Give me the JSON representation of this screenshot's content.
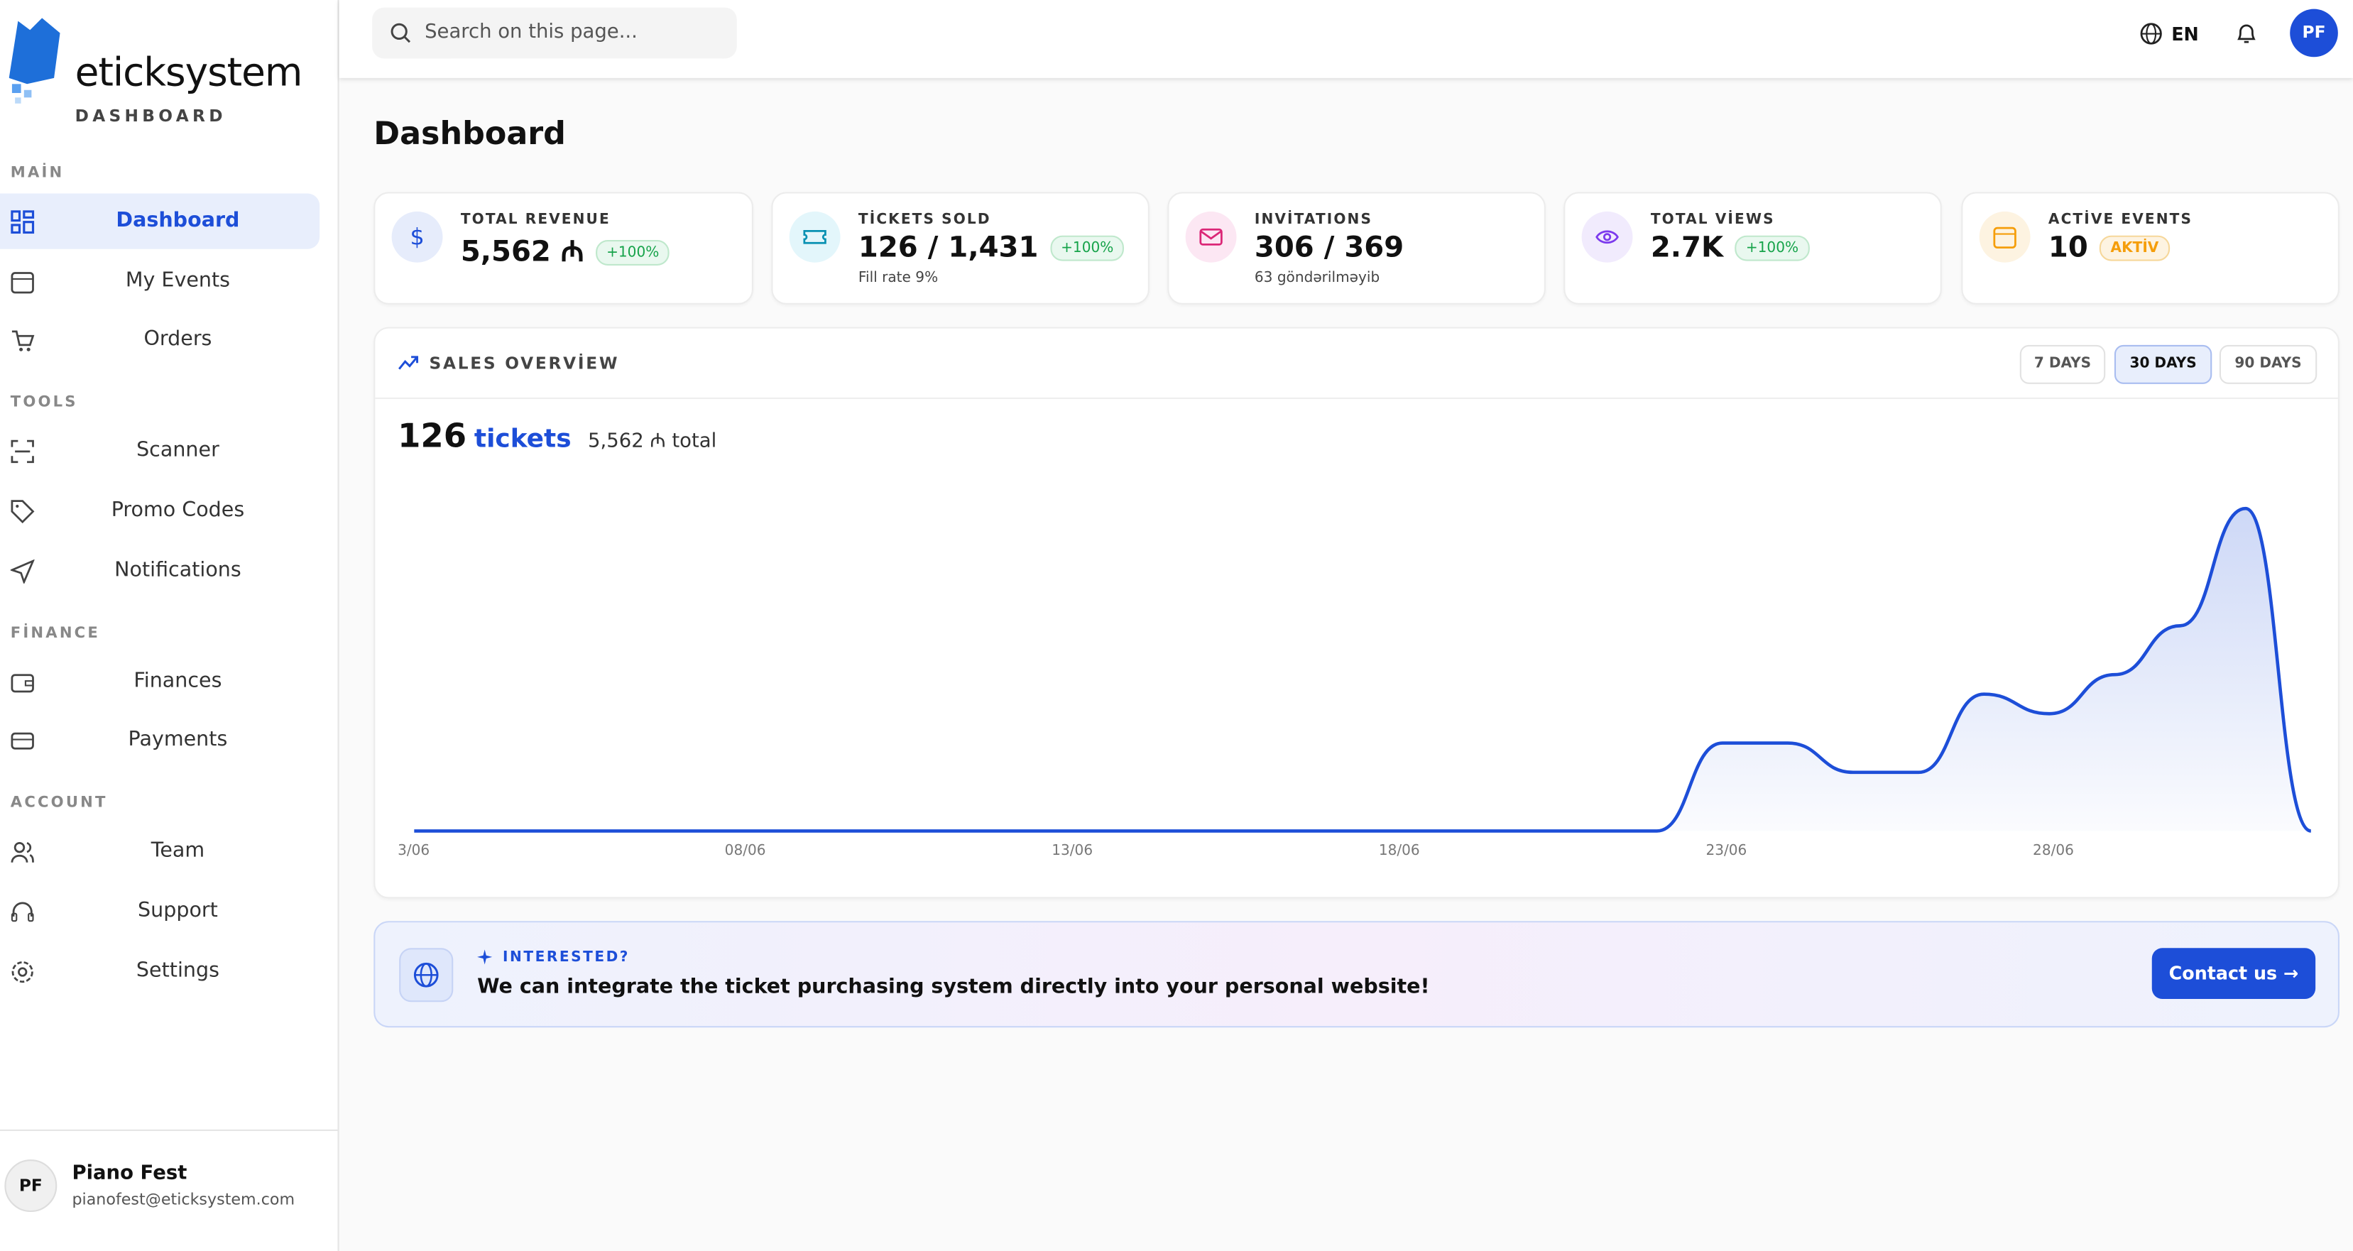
{
  "brand": {
    "name": "eticksystem",
    "subtitle": "DASHBOARD"
  },
  "sidebar": {
    "sections": [
      {
        "title": "MAİN",
        "items": [
          "Dashboard",
          "My Events",
          "Orders"
        ]
      },
      {
        "title": "TOOLS",
        "items": [
          "Scanner",
          "Promo Codes",
          "Notifications"
        ]
      },
      {
        "title": "FİNANCE",
        "items": [
          "Finances",
          "Payments"
        ]
      },
      {
        "title": "ACCOUNT",
        "items": [
          "Team",
          "Support",
          "Settings"
        ]
      }
    ]
  },
  "user": {
    "initials": "PF",
    "name": "Piano Fest",
    "email": "pianofest@eticksystem.com"
  },
  "header": {
    "search_placeholder": "Search on this page...",
    "language": "EN",
    "avatar": "PF"
  },
  "page_title": "Dashboard",
  "stats": [
    {
      "label": "TOTAL REVENUE",
      "value": "5,562 ₼",
      "badge": "+100%"
    },
    {
      "label": "TİCKETS SOLD",
      "value": "126 / 1,431",
      "badge": "+100%",
      "note": "Fill rate 9%"
    },
    {
      "label": "INVİTATIONS",
      "value": "306 / 369",
      "note": "63 göndərilməyib"
    },
    {
      "label": "TOTAL VİEWS",
      "value": "2.7K",
      "badge": "+100%"
    },
    {
      "label": "ACTİVE EVENTS",
      "value": "10",
      "badge": "AKTİV"
    }
  ],
  "sales": {
    "title": "SALES OVERVİEW",
    "ranges": [
      "7 DAYS",
      "30 DAYS",
      "90 DAYS"
    ],
    "tickets": "126",
    "tickets_label": "tickets",
    "total": "5,562 ₼ total"
  },
  "banner": {
    "kicker": "INTERESTED?",
    "text": "We can integrate the ticket purchasing system directly into your personal website!",
    "button": "Contact us"
  },
  "chart_data": {
    "type": "area",
    "color": "#1d4ed8",
    "categories": [
      "3/06",
      null,
      null,
      null,
      null,
      "08/06",
      null,
      null,
      null,
      null,
      "13/06",
      null,
      null,
      null,
      null,
      "18/06",
      null,
      null,
      null,
      null,
      "23/06",
      null,
      null,
      null,
      null,
      "28/06",
      null,
      null,
      null,
      null
    ],
    "values": [
      0,
      0,
      0,
      0,
      0,
      0,
      0,
      0,
      0,
      0,
      0,
      0,
      0,
      0,
      0,
      0,
      0,
      0,
      0,
      0,
      9,
      9,
      6,
      6,
      14,
      12,
      16,
      21,
      33,
      0
    ]
  }
}
